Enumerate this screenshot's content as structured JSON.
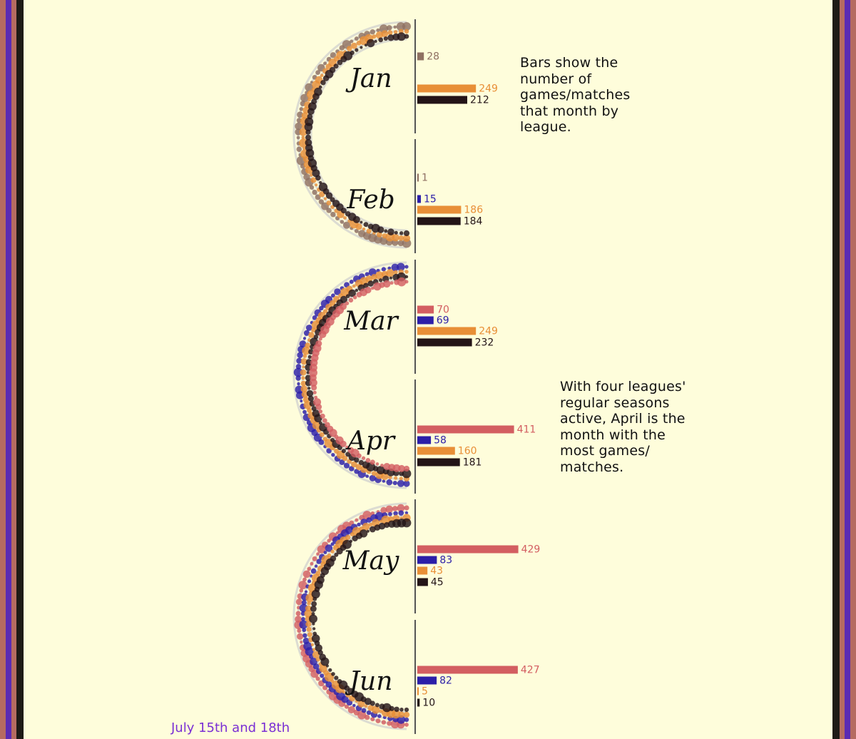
{
  "colors": {
    "background": "#fefddb",
    "border_red": "#b56b61",
    "border_purple": "#5a2bb3",
    "border_dark": "#1d1a16",
    "axis": "#555555",
    "track": "#dcdcd2"
  },
  "leagues": [
    {
      "key": "l1",
      "color": "#8f7062"
    },
    {
      "key": "l2",
      "color": "#d35e61"
    },
    {
      "key": "l3",
      "color": "#2c1fa8"
    },
    {
      "key": "l4",
      "color": "#e88f37"
    },
    {
      "key": "l5",
      "color": "#231417"
    }
  ],
  "notes": [
    {
      "id": "bars-note",
      "text": "Bars show the\nnumber of\ngames/matches\nthat month by\nleague."
    },
    {
      "id": "april-note",
      "text": "With four leagues'\nregular seasons\nactive, April is the\nmonth with the\nmost games/\nmatches."
    }
  ],
  "footnote": "July 15th and 18th",
  "chart_data": {
    "type": "bar",
    "categories": [
      "Jan",
      "Feb",
      "Mar",
      "Apr",
      "May",
      "Jun"
    ],
    "series": [
      {
        "key": "l1",
        "values": [
          28,
          1,
          null,
          null,
          null,
          null
        ]
      },
      {
        "key": "l2",
        "values": [
          null,
          null,
          70,
          411,
          429,
          427
        ]
      },
      {
        "key": "l3",
        "values": [
          null,
          15,
          69,
          58,
          83,
          82
        ]
      },
      {
        "key": "l4",
        "values": [
          249,
          186,
          249,
          160,
          43,
          5
        ]
      },
      {
        "key": "l5",
        "values": [
          212,
          184,
          232,
          181,
          45,
          10
        ]
      }
    ],
    "grid": false,
    "legend": "none"
  }
}
